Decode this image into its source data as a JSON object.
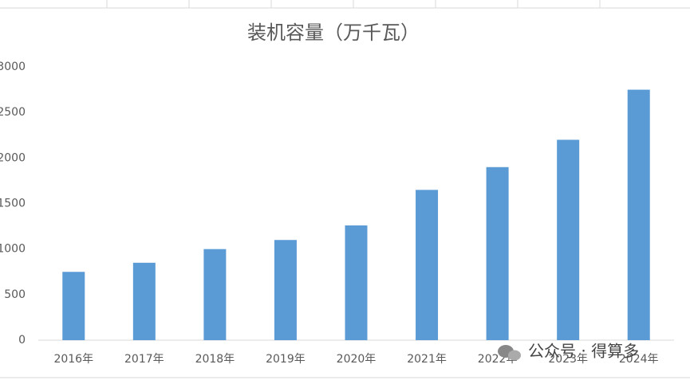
{
  "chart_data": {
    "type": "bar",
    "title": "装机容量（万千瓦）",
    "categories": [
      "2016年",
      "2017年",
      "2018年",
      "2019年",
      "2020年",
      "2021年",
      "2022年",
      "2023年",
      "2024年"
    ],
    "values": [
      750,
      850,
      1000,
      1100,
      1260,
      1650,
      1900,
      2200,
      2750
    ],
    "color": "#5b9bd5",
    "ylim": [
      0,
      3000
    ],
    "yticks": [
      0,
      500,
      1000,
      1500,
      2000,
      2500,
      3000
    ],
    "grid": false
  },
  "watermark": "公众号 · 得算多"
}
